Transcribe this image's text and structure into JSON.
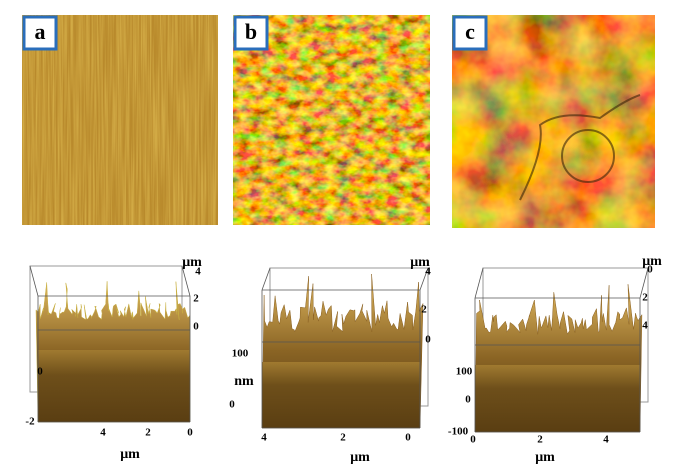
{
  "panels": [
    {
      "label": "a",
      "plot": {
        "z_axis_label": "μm",
        "z_ticks": [
          "4",
          "2",
          "0"
        ],
        "left_ticks": [
          "0",
          "-2"
        ],
        "x_ticks": [
          "4",
          "2",
          "0"
        ],
        "x_axis_label": "μm"
      }
    },
    {
      "label": "b",
      "plot": {
        "z_axis_label": "μm",
        "z_ticks": [
          "4",
          "2",
          "0"
        ],
        "left_ticks": [
          "100",
          "0"
        ],
        "left_axis_label": "nm",
        "x_ticks": [
          "4",
          "2",
          "0"
        ],
        "x_axis_label": "μm"
      }
    },
    {
      "label": "c",
      "plot": {
        "z_axis_label": "μm",
        "z_ticks": [
          "0",
          "2",
          "4"
        ],
        "left_ticks": [
          "100",
          "0",
          "-100"
        ],
        "x_ticks": [
          "0",
          "2",
          "4"
        ],
        "x_axis_label": "μm"
      }
    }
  ]
}
